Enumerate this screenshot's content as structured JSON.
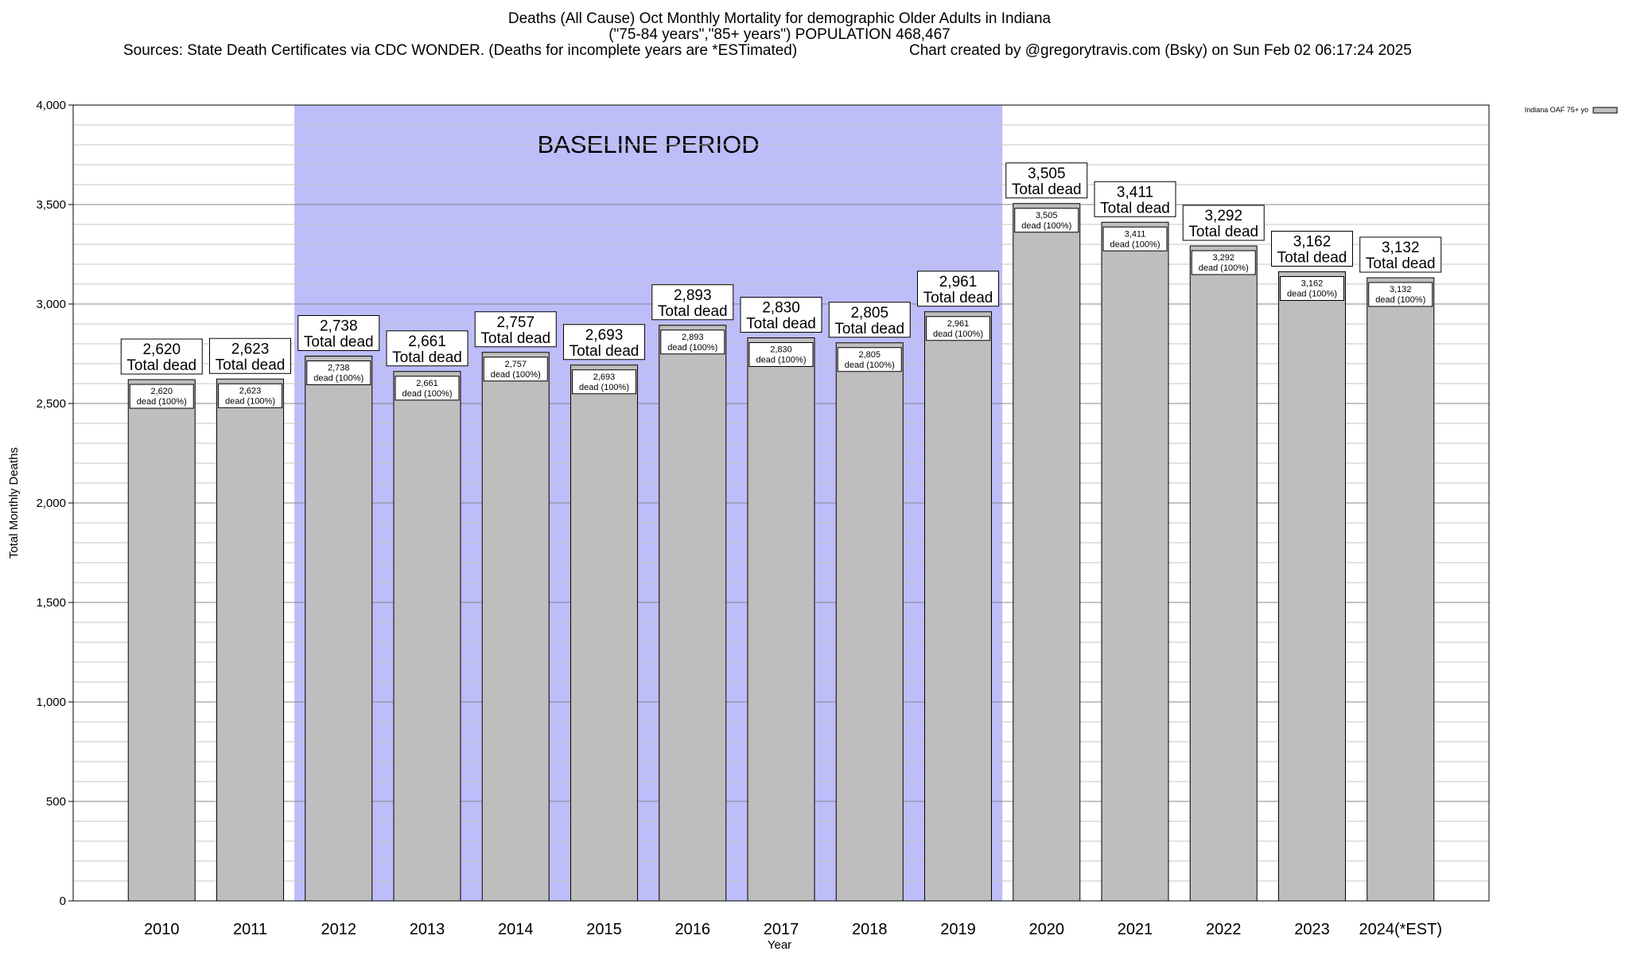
{
  "header": {
    "title_line1": "Deaths (All Cause) Oct Monthly Mortality for demographic Older Adults in Indiana",
    "title_line2": "(\"75-84 years\",\"85+ years\") POPULATION 468,467",
    "sources": "Sources: State Death Certificates via CDC WONDER. (Deaths for incomplete years are *ESTimated)",
    "credit": "Chart created by @gregorytravis.com (Bsky) on Sun Feb 02 06:17:24 2025"
  },
  "chart_data": {
    "type": "bar",
    "xlabel": "Year",
    "ylabel": "Total Monthly Deaths",
    "ylim": [
      0,
      4000
    ],
    "yticks": [
      0,
      500,
      1000,
      1500,
      2000,
      2500,
      3000,
      3500,
      4000
    ],
    "ytick_labels": [
      "0",
      "500",
      "1,000",
      "1,500",
      "2,000",
      "2,500",
      "3,000",
      "3,500",
      "4,000"
    ],
    "grid": true,
    "legend_position": "top-right",
    "categories": [
      "2010",
      "2011",
      "2012",
      "2013",
      "2014",
      "2015",
      "2016",
      "2017",
      "2018",
      "2019",
      "2020",
      "2021",
      "2022",
      "2023",
      "2024(*EST)"
    ],
    "series": [
      {
        "name": "Indiana OAF 75+ yo",
        "values": [
          2620,
          2623,
          2738,
          2661,
          2757,
          2693,
          2893,
          2830,
          2805,
          2961,
          3505,
          3411,
          3292,
          3162,
          3132
        ],
        "value_labels": [
          "2,620",
          "2,623",
          "2,738",
          "2,661",
          "2,757",
          "2,693",
          "2,893",
          "2,830",
          "2,805",
          "2,961",
          "3,505",
          "3,411",
          "3,292",
          "3,162",
          "3,132"
        ],
        "color": "#bebebe"
      }
    ],
    "label_top_suffix": "Total dead",
    "label_inner_suffix": "dead (100%)",
    "baseline": {
      "label": "BASELINE PERIOD",
      "from": "2012",
      "to": "2019",
      "color": "#bdbdfa"
    }
  }
}
